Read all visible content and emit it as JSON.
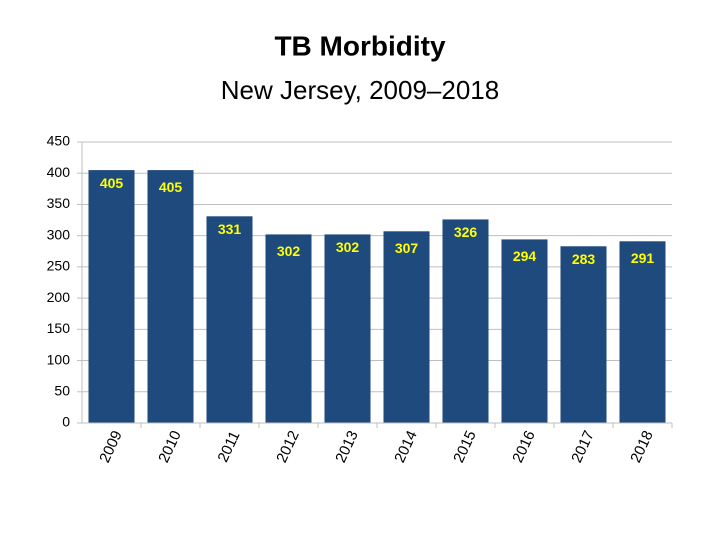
{
  "chart_data": {
    "type": "bar",
    "title": "TB Morbidity",
    "subtitle": "New Jersey, 2009–2018",
    "categories": [
      "2009",
      "2010",
      "2011",
      "2012",
      "2013",
      "2014",
      "2015",
      "2016",
      "2017",
      "2018"
    ],
    "values": [
      405,
      405,
      331,
      302,
      302,
      307,
      326,
      294,
      283,
      291
    ],
    "color": "#1f4a7e",
    "label_color": "#ffff00",
    "ylim": [
      0,
      450
    ],
    "yticks": [
      0,
      50,
      100,
      150,
      200,
      250,
      300,
      350,
      400,
      450
    ],
    "grid": true
  }
}
